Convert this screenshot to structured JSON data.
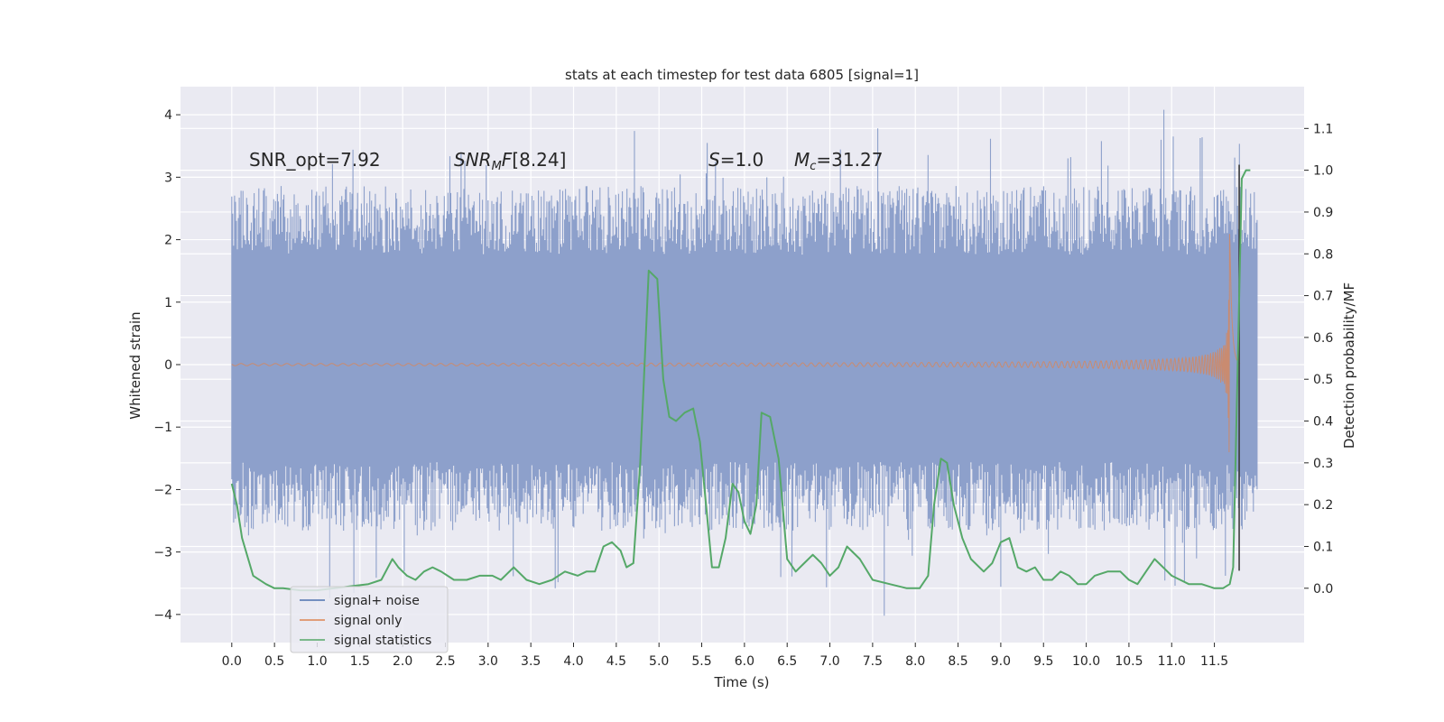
{
  "chart_data": {
    "type": "line",
    "title": "stats at each timestep for test data 6805 [signal=1]",
    "xlabel": "Time (s)",
    "ylabel": "Whitened strain",
    "y2label": "Detection probability/MF",
    "xlim": [
      -0.6,
      12.55
    ],
    "ylim": [
      -4.45,
      4.45
    ],
    "y2lim": [
      -0.13,
      1.2
    ],
    "x_ticks": [
      0.0,
      0.5,
      1.0,
      1.5,
      2.0,
      2.5,
      3.0,
      3.5,
      4.0,
      4.5,
      5.0,
      5.5,
      6.0,
      6.5,
      7.0,
      7.5,
      8.0,
      8.5,
      9.0,
      9.5,
      10.0,
      10.5,
      11.0,
      11.5
    ],
    "x_tick_labels": [
      "0.0",
      "0.5",
      "1.0",
      "1.5",
      "2.0",
      "2.5",
      "3.0",
      "3.5",
      "4.0",
      "4.5",
      "5.0",
      "5.5",
      "6.0",
      "6.5",
      "7.0",
      "7.5",
      "8.0",
      "8.5",
      "9.0",
      "9.5",
      "10.0",
      "10.5",
      "11.0",
      "11.5"
    ],
    "y_ticks": [
      4,
      3,
      2,
      1,
      0,
      -1,
      -2,
      -3,
      -4
    ],
    "y_tick_labels": [
      "4",
      "3",
      "2",
      "1",
      "0",
      "−1",
      "−2",
      "−3",
      "−4"
    ],
    "y2_ticks": [
      1.1,
      1.0,
      0.9,
      0.8,
      0.7,
      0.6,
      0.5,
      0.4,
      0.3,
      0.2,
      0.1,
      0.0
    ],
    "y2_tick_labels": [
      "1.1",
      "1.0",
      "0.9",
      "0.8",
      "0.7",
      "0.6",
      "0.5",
      "0.4",
      "0.3",
      "0.2",
      "0.1",
      "0.0"
    ],
    "grid": true,
    "legend_position": "lower-left",
    "annotations": {
      "snr_opt": "SNR_opt=7.92",
      "snr_mf": "[8.24]",
      "s": "=1.0",
      "mc": "=31.27"
    },
    "noise_envelope": {
      "x_range": [
        0.0,
        12.0
      ],
      "core_band": [
        -1.3,
        1.3
      ],
      "typical_band": [
        -2.0,
        2.2
      ],
      "max": 4.08,
      "min": -4.02
    },
    "signal_only": {
      "merger_time": 11.68,
      "peak_amplitude": 2.1,
      "ringdown_end": 11.8
    },
    "series": [
      {
        "name": "signal+ noise",
        "color": "#8da0cb",
        "line_color": "#4c72b0"
      },
      {
        "name": "signal only",
        "color": "#dd8452"
      },
      {
        "name": "signal statistics",
        "color": "#55a868",
        "axis": "right",
        "x": [
          0.0,
          0.06,
          0.12,
          0.25,
          0.4,
          0.5,
          0.6,
          0.8,
          1.0,
          1.2,
          1.4,
          1.6,
          1.75,
          1.88,
          1.95,
          2.05,
          2.15,
          2.25,
          2.35,
          2.45,
          2.6,
          2.75,
          2.9,
          3.05,
          3.15,
          3.3,
          3.45,
          3.6,
          3.75,
          3.9,
          4.05,
          4.15,
          4.25,
          4.35,
          4.45,
          4.55,
          4.62,
          4.7,
          4.78,
          4.88,
          4.98,
          5.05,
          5.12,
          5.2,
          5.3,
          5.4,
          5.48,
          5.55,
          5.62,
          5.7,
          5.78,
          5.86,
          5.93,
          6.0,
          6.07,
          6.14,
          6.2,
          6.3,
          6.4,
          6.5,
          6.6,
          6.7,
          6.8,
          6.9,
          7.0,
          7.1,
          7.2,
          7.35,
          7.5,
          7.7,
          7.9,
          8.05,
          8.15,
          8.22,
          8.3,
          8.37,
          8.45,
          8.55,
          8.65,
          8.8,
          8.9,
          9.0,
          9.1,
          9.2,
          9.3,
          9.4,
          9.5,
          9.6,
          9.7,
          9.8,
          9.9,
          10.0,
          10.1,
          10.25,
          10.4,
          10.5,
          10.6,
          10.7,
          10.8,
          10.9,
          11.0,
          11.1,
          11.2,
          11.35,
          11.5,
          11.6,
          11.68,
          11.72,
          11.78,
          11.82,
          11.87,
          11.92
        ],
        "values": [
          0.25,
          0.2,
          0.12,
          0.03,
          0.01,
          0.0,
          0.0,
          -0.005,
          -0.005,
          0.0,
          0.005,
          0.01,
          0.02,
          0.07,
          0.05,
          0.03,
          0.02,
          0.04,
          0.05,
          0.04,
          0.02,
          0.02,
          0.03,
          0.03,
          0.02,
          0.05,
          0.02,
          0.01,
          0.02,
          0.04,
          0.03,
          0.04,
          0.04,
          0.1,
          0.11,
          0.09,
          0.05,
          0.06,
          0.3,
          0.76,
          0.74,
          0.5,
          0.41,
          0.4,
          0.42,
          0.43,
          0.35,
          0.2,
          0.05,
          0.05,
          0.12,
          0.25,
          0.23,
          0.16,
          0.13,
          0.2,
          0.42,
          0.41,
          0.31,
          0.07,
          0.04,
          0.06,
          0.08,
          0.06,
          0.03,
          0.05,
          0.1,
          0.07,
          0.02,
          0.01,
          0.0,
          0.0,
          0.03,
          0.2,
          0.31,
          0.3,
          0.2,
          0.12,
          0.07,
          0.04,
          0.06,
          0.11,
          0.12,
          0.05,
          0.04,
          0.05,
          0.02,
          0.02,
          0.04,
          0.03,
          0.01,
          0.01,
          0.03,
          0.04,
          0.04,
          0.02,
          0.01,
          0.04,
          0.07,
          0.05,
          0.03,
          0.02,
          0.01,
          0.01,
          0.0,
          0.0,
          0.01,
          0.05,
          0.6,
          0.98,
          1.0,
          1.0
        ]
      }
    ]
  }
}
